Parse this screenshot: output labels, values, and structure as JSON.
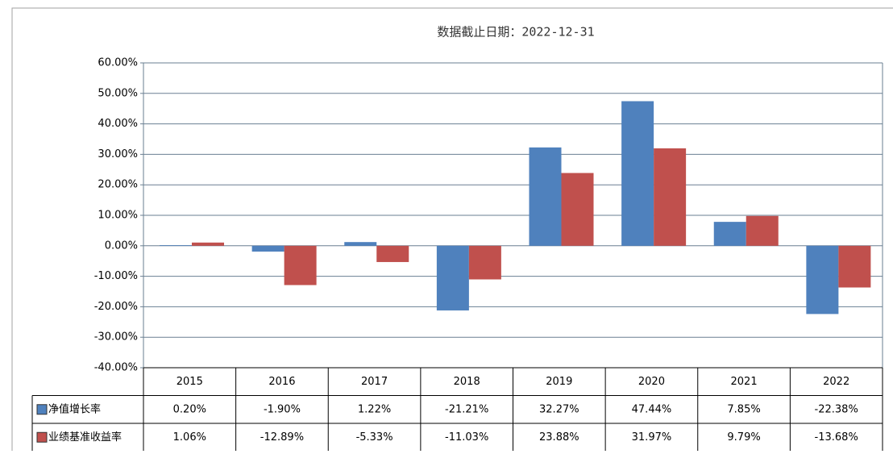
{
  "chart_data": {
    "type": "bar",
    "title": "数据截止日期：2022-12-31",
    "categories": [
      "2015",
      "2016",
      "2017",
      "2018",
      "2019",
      "2020",
      "2021",
      "2022"
    ],
    "series": [
      {
        "name": "净值增长率",
        "color": "#4f81bd",
        "values": [
          0.2,
          -1.9,
          1.22,
          -21.21,
          32.27,
          47.44,
          7.85,
          -22.38
        ],
        "value_labels": [
          "0.20%",
          "-1.90%",
          "1.22%",
          "-21.21%",
          "32.27%",
          "47.44%",
          "7.85%",
          "-22.38%"
        ]
      },
      {
        "name": "业绩基准收益率",
        "color": "#c0504d",
        "values": [
          1.06,
          -12.89,
          -5.33,
          -11.03,
          23.88,
          31.97,
          9.79,
          -13.68
        ],
        "value_labels": [
          "1.06%",
          "-12.89%",
          "-5.33%",
          "-11.03%",
          "23.88%",
          "31.97%",
          "9.79%",
          "-13.68%"
        ]
      }
    ],
    "ylim": [
      -40,
      60
    ],
    "yticks": [
      {
        "value": -40,
        "label": "-40.00%"
      },
      {
        "value": -30,
        "label": "-30.00%"
      },
      {
        "value": -20,
        "label": "-20.00%"
      },
      {
        "value": -10,
        "label": "-10.00%"
      },
      {
        "value": 0,
        "label": "0.00%"
      },
      {
        "value": 10,
        "label": "10.00%"
      },
      {
        "value": 20,
        "label": "20.00%"
      },
      {
        "value": 30,
        "label": "30.00%"
      },
      {
        "value": 40,
        "label": "40.00%"
      },
      {
        "value": 50,
        "label": "50.00%"
      },
      {
        "value": 60,
        "label": "60.00%"
      }
    ],
    "grid": true
  }
}
